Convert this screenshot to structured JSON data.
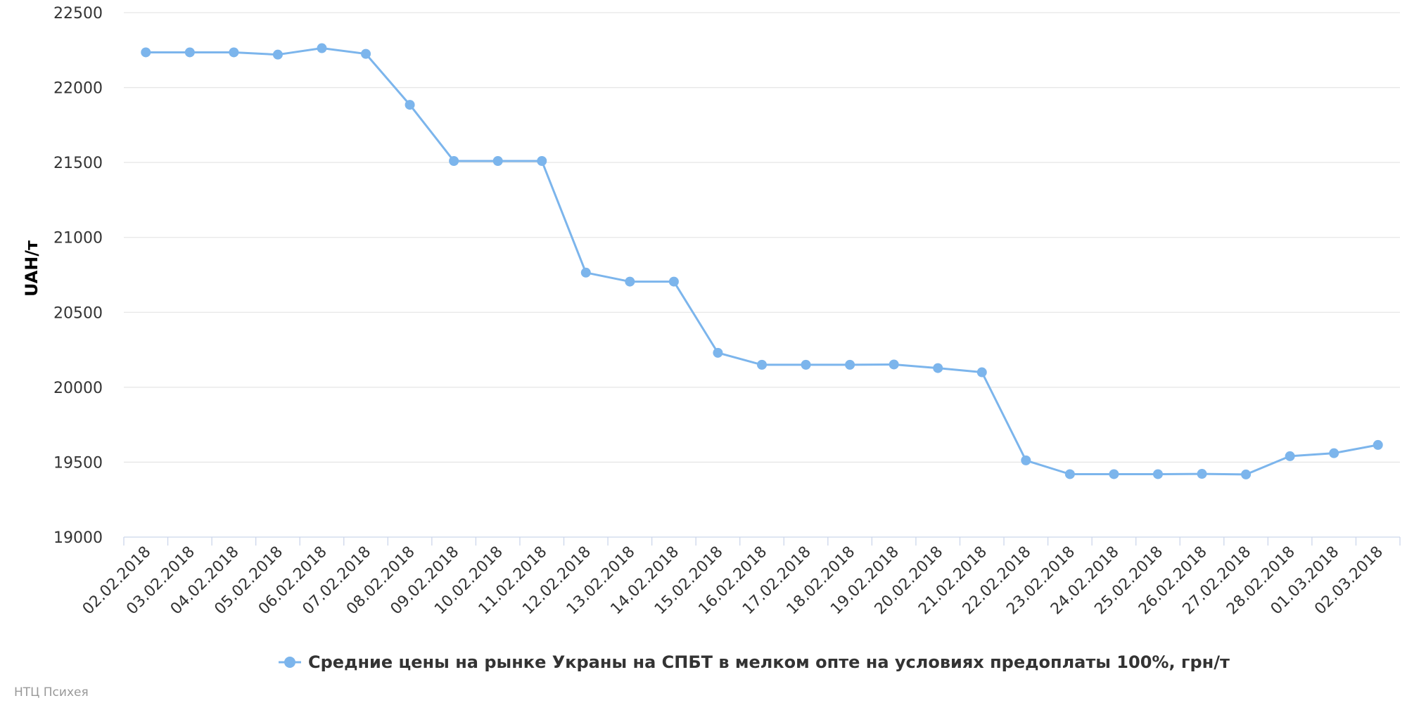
{
  "colors": {
    "series": "#7cb5ec"
  },
  "credits": "НТЦ Психея",
  "chart_data": {
    "type": "line",
    "ylabel": "UAH/т",
    "xlabel": "",
    "ylim": [
      19000,
      22500
    ],
    "yticks": [
      19000,
      19500,
      20000,
      20500,
      21000,
      21500,
      22000,
      22500
    ],
    "grid": true,
    "legend_position": "bottom-center",
    "categories": [
      "02.02.2018",
      "03.02.2018",
      "04.02.2018",
      "05.02.2018",
      "06.02.2018",
      "07.02.2018",
      "08.02.2018",
      "09.02.2018",
      "10.02.2018",
      "11.02.2018",
      "12.02.2018",
      "13.02.2018",
      "14.02.2018",
      "15.02.2018",
      "16.02.2018",
      "17.02.2018",
      "18.02.2018",
      "19.02.2018",
      "20.02.2018",
      "21.02.2018",
      "22.02.2018",
      "23.02.2018",
      "24.02.2018",
      "25.02.2018",
      "26.02.2018",
      "27.02.2018",
      "28.02.2018",
      "01.03.2018",
      "02.03.2018"
    ],
    "series": [
      {
        "name": "Средние цены на рынке Украны на СПБТ в мелком опте на условиях предоплаты 100%, грн/т",
        "values": [
          22235,
          22235,
          22235,
          22220,
          22263,
          22225,
          21885,
          21510,
          21510,
          21510,
          20765,
          20705,
          20705,
          20230,
          20150,
          20150,
          20150,
          20152,
          20128,
          20100,
          19512,
          19420,
          19420,
          19420,
          19422,
          19418,
          19540,
          19560,
          19615
        ]
      }
    ]
  }
}
